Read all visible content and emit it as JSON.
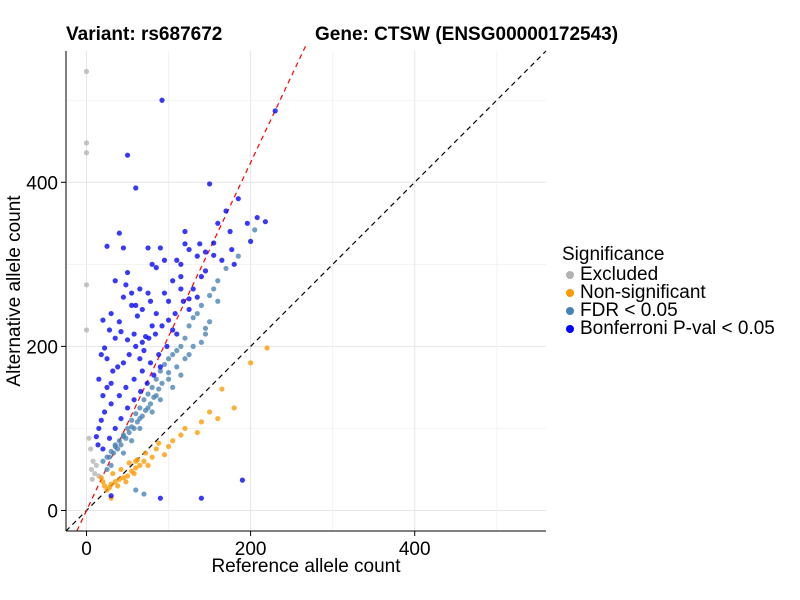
{
  "title": {
    "variant": "Variant: rs687672",
    "gene": "Gene: CTSW (ENSG00000172543)"
  },
  "legend": {
    "title": "Significance",
    "items": [
      {
        "label": "Excluded",
        "color": "#b3b3b3"
      },
      {
        "label": "Non-significant",
        "color": "#ff9900"
      },
      {
        "label": "FDR < 0.05",
        "color": "#4682b4"
      },
      {
        "label": "Bonferroni P-val < 0.05",
        "color": "#0000ff"
      }
    ]
  },
  "chart_data": {
    "type": "scatter",
    "xlabel": "Reference allele count",
    "ylabel": "Alternative allele count",
    "xlim": [
      -25,
      560
    ],
    "ylim": [
      -25,
      560
    ],
    "xticks": [
      0,
      200,
      400
    ],
    "yticks": [
      0,
      200,
      400
    ],
    "grid": true,
    "reference_lines": [
      {
        "name": "identity",
        "slope": 1.0,
        "intercept": 0,
        "style": "dashed",
        "color": "#000000"
      },
      {
        "name": "fitted",
        "slope": 2.12,
        "intercept": 0,
        "style": "dashed",
        "color": "#ff0000"
      }
    ],
    "series": [
      {
        "name": "Excluded",
        "color": "#b3b3b3",
        "points": [
          [
            0,
            535
          ],
          [
            0,
            448
          ],
          [
            0,
            436
          ],
          [
            0,
            275
          ],
          [
            0,
            220
          ],
          [
            5,
            75
          ],
          [
            8,
            60
          ],
          [
            6,
            50
          ],
          [
            10,
            45
          ],
          [
            3,
            88
          ],
          [
            12,
            55
          ],
          [
            15,
            42
          ],
          [
            7,
            38
          ]
        ]
      },
      {
        "name": "Non-significant",
        "color": "#ff9900",
        "points": [
          [
            220,
            198
          ],
          [
            200,
            180
          ],
          [
            165,
            148
          ],
          [
            160,
            112
          ],
          [
            180,
            125
          ],
          [
            140,
            108
          ],
          [
            135,
            95
          ],
          [
            115,
            92
          ],
          [
            100,
            78
          ],
          [
            85,
            75
          ],
          [
            95,
            68
          ],
          [
            80,
            65
          ],
          [
            70,
            60
          ],
          [
            65,
            55
          ],
          [
            60,
            52
          ],
          [
            55,
            48
          ],
          [
            50,
            42
          ],
          [
            45,
            40
          ],
          [
            40,
            38
          ],
          [
            35,
            35
          ],
          [
            30,
            32
          ],
          [
            28,
            28
          ],
          [
            25,
            25
          ],
          [
            22,
            30
          ],
          [
            20,
            35
          ],
          [
            18,
            40
          ],
          [
            32,
            45
          ],
          [
            42,
            50
          ],
          [
            52,
            58
          ],
          [
            62,
            62
          ],
          [
            72,
            70
          ],
          [
            88,
            82
          ],
          [
            105,
            85
          ],
          [
            120,
            100
          ],
          [
            150,
            120
          ],
          [
            48,
            35
          ],
          [
            38,
            30
          ],
          [
            58,
            45
          ],
          [
            75,
            55
          ],
          [
            30,
            15
          ],
          [
            60,
            60
          ]
        ]
      },
      {
        "name": "FDR < 0.05",
        "color": "#4682b4",
        "points": [
          [
            205,
            342
          ],
          [
            185,
            310
          ],
          [
            170,
            295
          ],
          [
            160,
            280
          ],
          [
            155,
            270
          ],
          [
            150,
            262
          ],
          [
            140,
            250
          ],
          [
            135,
            240
          ],
          [
            130,
            235
          ],
          [
            125,
            225
          ],
          [
            150,
            230
          ],
          [
            145,
            215
          ],
          [
            120,
            210
          ],
          [
            115,
            200
          ],
          [
            110,
            195
          ],
          [
            105,
            190
          ],
          [
            100,
            185
          ],
          [
            95,
            178
          ],
          [
            90,
            170
          ],
          [
            85,
            160
          ],
          [
            80,
            150
          ],
          [
            75,
            142
          ],
          [
            70,
            135
          ],
          [
            65,
            125
          ],
          [
            60,
            118
          ],
          [
            55,
            110
          ],
          [
            50,
            100
          ],
          [
            45,
            92
          ],
          [
            40,
            85
          ],
          [
            35,
            78
          ],
          [
            30,
            72
          ],
          [
            25,
            65
          ],
          [
            20,
            60
          ],
          [
            110,
            175
          ],
          [
            100,
            168
          ],
          [
            92,
            155
          ],
          [
            88,
            148
          ],
          [
            82,
            138
          ],
          [
            78,
            130
          ],
          [
            72,
            122
          ],
          [
            68,
            115
          ],
          [
            62,
            108
          ],
          [
            58,
            100
          ],
          [
            52,
            95
          ],
          [
            48,
            88
          ],
          [
            42,
            80
          ],
          [
            38,
            75
          ],
          [
            33,
            70
          ],
          [
            28,
            65
          ],
          [
            130,
            200
          ],
          [
            140,
            205
          ],
          [
            120,
            185
          ],
          [
            100,
            160
          ],
          [
            85,
            140
          ],
          [
            75,
            125
          ],
          [
            65,
            112
          ],
          [
            55,
            102
          ],
          [
            45,
            90
          ],
          [
            35,
            80
          ],
          [
            60,
            25
          ],
          [
            70,
            20
          ],
          [
            80,
            120
          ],
          [
            90,
            135
          ],
          [
            105,
            150
          ],
          [
            115,
            165
          ],
          [
            125,
            190
          ],
          [
            45,
            70
          ],
          [
            55,
            85
          ],
          [
            65,
            100
          ],
          [
            30,
            55
          ],
          [
            25,
            50
          ],
          [
            160,
            255
          ],
          [
            145,
            222
          ]
        ]
      },
      {
        "name": "Bonferroni P-val < 0.05",
        "color": "#0000ff",
        "points": [
          [
            230,
            487
          ],
          [
            92,
            500
          ],
          [
            50,
            433
          ],
          [
            60,
            393
          ],
          [
            150,
            398
          ],
          [
            185,
            380
          ],
          [
            218,
            352
          ],
          [
            208,
            357
          ],
          [
            196,
            350
          ],
          [
            200,
            328
          ],
          [
            175,
            340
          ],
          [
            135,
            310
          ],
          [
            138,
            325
          ],
          [
            177,
            318
          ],
          [
            155,
            326
          ],
          [
            155,
            311
          ],
          [
            145,
            315
          ],
          [
            120,
            340
          ],
          [
            125,
            318
          ],
          [
            110,
            305
          ],
          [
            115,
            285
          ],
          [
            115,
            270
          ],
          [
            95,
            305
          ],
          [
            90,
            320
          ],
          [
            75,
            320
          ],
          [
            80,
            300
          ],
          [
            85,
            296
          ],
          [
            45,
            320
          ],
          [
            40,
            338
          ],
          [
            50,
            290
          ],
          [
            48,
            275
          ],
          [
            25,
            322
          ],
          [
            35,
            280
          ],
          [
            60,
            250
          ],
          [
            62,
            237
          ],
          [
            55,
            265
          ],
          [
            78,
            255
          ],
          [
            68,
            245
          ],
          [
            80,
            225
          ],
          [
            72,
            212
          ],
          [
            58,
            215
          ],
          [
            50,
            208
          ],
          [
            42,
            218
          ],
          [
            35,
            210
          ],
          [
            28,
            220
          ],
          [
            22,
            198
          ],
          [
            18,
            190
          ],
          [
            25,
            185
          ],
          [
            32,
            170
          ],
          [
            38,
            175
          ],
          [
            45,
            180
          ],
          [
            52,
            190
          ],
          [
            60,
            200
          ],
          [
            68,
            205
          ],
          [
            76,
            210
          ],
          [
            84,
            215
          ],
          [
            92,
            225
          ],
          [
            100,
            232
          ],
          [
            108,
            240
          ],
          [
            118,
            255
          ],
          [
            130,
            270
          ],
          [
            140,
            285
          ],
          [
            110,
            215
          ],
          [
            98,
            200
          ],
          [
            88,
            190
          ],
          [
            78,
            180
          ],
          [
            68,
            170
          ],
          [
            58,
            160
          ],
          [
            48,
            150
          ],
          [
            40,
            140
          ],
          [
            30,
            130
          ],
          [
            22,
            120
          ],
          [
            18,
            110
          ],
          [
            15,
            100
          ],
          [
            12,
            90
          ],
          [
            14,
            80
          ],
          [
            20,
            75
          ],
          [
            28,
            88
          ],
          [
            35,
            100
          ],
          [
            42,
            112
          ],
          [
            50,
            125
          ],
          [
            58,
            135
          ],
          [
            66,
            145
          ],
          [
            74,
            155
          ],
          [
            82,
            165
          ],
          [
            90,
            175
          ],
          [
            20,
            140
          ],
          [
            15,
            160
          ],
          [
            25,
            150
          ],
          [
            30,
            155
          ],
          [
            65,
            185
          ],
          [
            70,
            195
          ],
          [
            105,
            220
          ],
          [
            125,
            245
          ],
          [
            135,
            260
          ],
          [
            145,
            292
          ],
          [
            165,
            305
          ],
          [
            90,
            15
          ],
          [
            140,
            15
          ],
          [
            190,
            37
          ],
          [
            30,
            18
          ],
          [
            125,
            258
          ],
          [
            100,
            255
          ],
          [
            85,
            240
          ],
          [
            95,
            265
          ],
          [
            75,
            265
          ],
          [
            65,
            270
          ],
          [
            55,
            250
          ],
          [
            40,
            230
          ],
          [
            30,
            240
          ],
          [
            20,
            232
          ],
          [
            45,
            260
          ],
          [
            105,
            280
          ],
          [
            115,
            300
          ],
          [
            120,
            325
          ],
          [
            160,
            350
          ],
          [
            170,
            365
          ],
          [
            180,
            300
          ]
        ]
      }
    ]
  }
}
